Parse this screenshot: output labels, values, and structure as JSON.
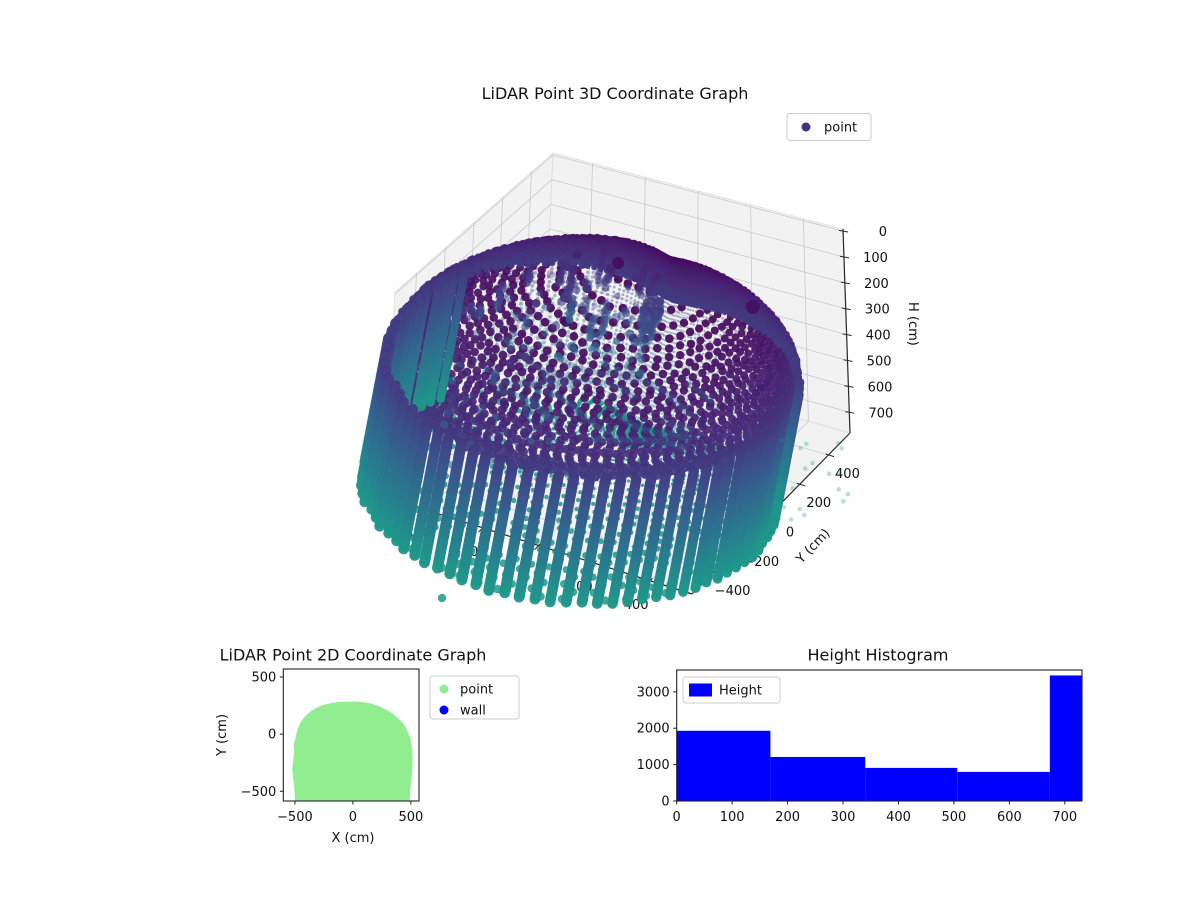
{
  "figure": {
    "background": "#ffffff"
  },
  "chart_data": [
    {
      "id": "lidar-3d",
      "type": "scatter3d",
      "title": "LiDAR Point 3D Coordinate Graph",
      "legend": {
        "location": "upper right",
        "entries": [
          {
            "label": "point",
            "marker_color": "#46327e"
          }
        ]
      },
      "xlabel": "",
      "ylabel": "Y (cm)",
      "zlabel": "H (cm)",
      "xlim": [
        -550,
        550
      ],
      "ylim": [
        -550,
        550
      ],
      "zlim": [
        0,
        788
      ],
      "z_axis_inverted": true,
      "xticks": [
        -400,
        -200,
        0,
        200,
        400
      ],
      "yticks": [
        -400,
        -200,
        0,
        200,
        400
      ],
      "zticks": [
        0,
        100,
        200,
        300,
        400,
        500,
        600,
        700
      ],
      "colormap": "viridis",
      "color_by": "height H",
      "color_range_cm": [
        0,
        1300
      ],
      "scene": {
        "description": "cylindrical room LiDAR scan",
        "wall_radius_cm": 570,
        "room_height_cm": 772,
        "ceiling": "dome cap, H 0-252, dark purple",
        "walls": "vertical point columns, H 255-772, indigo to teal",
        "floor": "concentric spiral rings of points at H 772, teal",
        "clutter": "scattered point strands upper-left interior, H 140-560",
        "outlier_point_xyh": [
          -90,
          -800,
          772
        ]
      }
    },
    {
      "id": "lidar-2d",
      "type": "scatter",
      "title": "LiDAR Point 2D Coordinate Graph",
      "xlabel": "X (cm)",
      "ylabel": "Y (cm)",
      "xlim": [
        -600,
        570
      ],
      "ylim": [
        -585,
        570
      ],
      "xticks": [
        -500,
        0,
        500
      ],
      "yticks": [
        -500,
        0,
        500
      ],
      "legend": {
        "location": "upper right",
        "entries": [
          {
            "label": "point",
            "marker_color": "#90ee90"
          },
          {
            "label": "wall",
            "marker_color": "#0000ff"
          }
        ]
      },
      "point_color": "#90ee90",
      "footprint_outline_xy": [
        [
          -497,
          -585
        ],
        [
          -505,
          -470
        ],
        [
          -516,
          -380
        ],
        [
          -524,
          -300
        ],
        [
          -512,
          -210
        ],
        [
          -505,
          -150
        ],
        [
          -512,
          -95
        ],
        [
          -496,
          -40
        ],
        [
          -490,
          -5
        ],
        [
          -478,
          40
        ],
        [
          -455,
          95
        ],
        [
          -430,
          135
        ],
        [
          -395,
          175
        ],
        [
          -355,
          205
        ],
        [
          -305,
          235
        ],
        [
          -250,
          258
        ],
        [
          -195,
          271
        ],
        [
          -130,
          280
        ],
        [
          -60,
          284
        ],
        [
          15,
          286
        ],
        [
          90,
          280
        ],
        [
          160,
          268
        ],
        [
          230,
          242
        ],
        [
          295,
          210
        ],
        [
          350,
          175
        ],
        [
          400,
          130
        ],
        [
          440,
          85
        ],
        [
          468,
          35
        ],
        [
          492,
          -25
        ],
        [
          505,
          -90
        ],
        [
          512,
          -160
        ],
        [
          516,
          -240
        ],
        [
          512,
          -320
        ],
        [
          505,
          -400
        ],
        [
          495,
          -480
        ],
        [
          490,
          -585
        ]
      ]
    },
    {
      "id": "height-histogram",
      "type": "histogram",
      "title": "Height Histogram",
      "legend": {
        "location": "upper left",
        "entries": [
          {
            "label": "Height",
            "marker_color": "#0000ff"
          }
        ]
      },
      "bar_color": "#0000ff",
      "bin_edges": [
        0,
        169,
        340,
        506,
        673,
        731
      ],
      "counts": [
        1930,
        1210,
        910,
        800,
        3450
      ],
      "xticks": [
        0,
        100,
        200,
        300,
        400,
        500,
        600,
        700
      ],
      "yticks": [
        0,
        1000,
        2000,
        3000
      ],
      "xlim": [
        0,
        731
      ],
      "ylim": [
        0,
        3600
      ]
    }
  ]
}
